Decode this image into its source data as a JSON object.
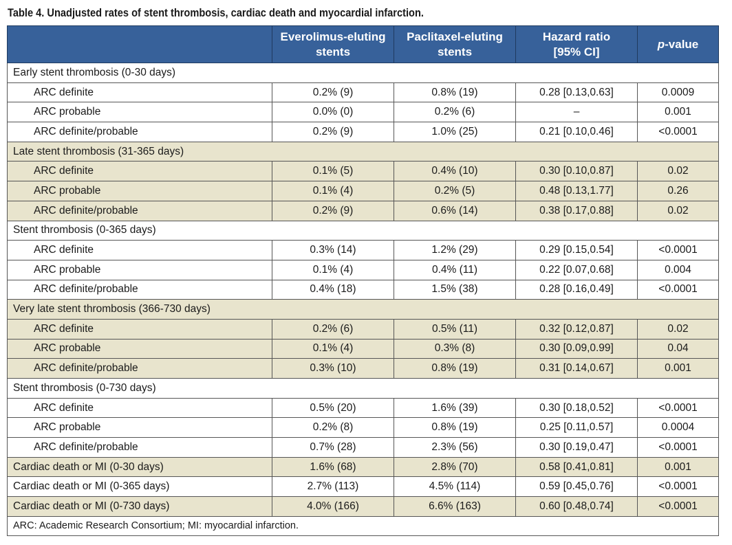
{
  "caption": "Table 4. Unadjusted rates of stent thrombosis, cardiac death and myocardial infarction.",
  "columns": {
    "everolimus": [
      "Everolimus-eluting",
      "stents"
    ],
    "paclitaxel": [
      "Paclitaxel-eluting",
      "stents"
    ],
    "hazard": [
      "Hazard ratio",
      "[95% CI]"
    ],
    "pvalue_italic": "p",
    "pvalue_rest": "-value"
  },
  "colors": {
    "header_bg": "#37619a",
    "band_bg": "#e8e4cd",
    "border": "#555555"
  },
  "rows": [
    {
      "kind": "group",
      "label": "Early stent thrombosis (0-30 days)",
      "band": 0
    },
    {
      "kind": "data",
      "label": "ARC definite",
      "eve": "0.2% (9)",
      "pac": "0.8% (19)",
      "hr": "0.28 [0.13,0.63]",
      "p": "0.0009",
      "band": 0
    },
    {
      "kind": "data",
      "label": "ARC probable",
      "eve": "0.0% (0)",
      "pac": "0.2% (6)",
      "hr": "–",
      "p": "0.001",
      "band": 0
    },
    {
      "kind": "data",
      "label": "ARC definite/probable",
      "eve": "0.2% (9)",
      "pac": "1.0% (25)",
      "hr": "0.21 [0.10,0.46]",
      "p": "<0.0001",
      "band": 0
    },
    {
      "kind": "group",
      "label": "Late stent thrombosis (31-365 days)",
      "band": 1
    },
    {
      "kind": "data",
      "label": "ARC definite",
      "eve": "0.1% (5)",
      "pac": "0.4% (10)",
      "hr": "0.30 [0.10,0.87]",
      "p": "0.02",
      "band": 1
    },
    {
      "kind": "data",
      "label": "ARC probable",
      "eve": "0.1% (4)",
      "pac": "0.2% (5)",
      "hr": "0.48 [0.13,1.77]",
      "p": "0.26",
      "band": 1
    },
    {
      "kind": "data",
      "label": "ARC definite/probable",
      "eve": "0.2% (9)",
      "pac": "0.6% (14)",
      "hr": "0.38 [0.17,0.88]",
      "p": "0.02",
      "band": 1
    },
    {
      "kind": "group",
      "label": "Stent thrombosis (0-365 days)",
      "band": 0
    },
    {
      "kind": "data",
      "label": "ARC definite",
      "eve": "0.3% (14)",
      "pac": "1.2% (29)",
      "hr": "0.29 [0.15,0.54]",
      "p": "<0.0001",
      "band": 0
    },
    {
      "kind": "data",
      "label": "ARC probable",
      "eve": "0.1% (4)",
      "pac": "0.4% (11)",
      "hr": "0.22 [0.07,0.68]",
      "p": "0.004",
      "band": 0
    },
    {
      "kind": "data",
      "label": "ARC definite/probable",
      "eve": "0.4% (18)",
      "pac": "1.5% (38)",
      "hr": "0.28 [0.16,0.49]",
      "p": "<0.0001",
      "band": 0
    },
    {
      "kind": "group",
      "label": "Very late stent thrombosis (366-730 days)",
      "band": 1
    },
    {
      "kind": "data",
      "label": "ARC definite",
      "eve": "0.2% (6)",
      "pac": "0.5% (11)",
      "hr": "0.32 [0.12,0.87]",
      "p": "0.02",
      "band": 1
    },
    {
      "kind": "data",
      "label": "ARC probable",
      "eve": "0.1% (4)",
      "pac": "0.3% (8)",
      "hr": "0.30 [0.09,0.99]",
      "p": "0.04",
      "band": 1
    },
    {
      "kind": "data",
      "label": "ARC definite/probable",
      "eve": "0.3% (10)",
      "pac": "0.8% (19)",
      "hr": "0.31 [0.14,0.67]",
      "p": "0.001",
      "band": 1
    },
    {
      "kind": "group",
      "label": "Stent thrombosis (0-730 days)",
      "band": 0
    },
    {
      "kind": "data",
      "label": "ARC definite",
      "eve": "0.5% (20)",
      "pac": "1.6% (39)",
      "hr": "0.30 [0.18,0.52]",
      "p": "<0.0001",
      "band": 0
    },
    {
      "kind": "data",
      "label": "ARC probable",
      "eve": "0.2% (8)",
      "pac": "0.8% (19)",
      "hr": "0.25 [0.11,0.57]",
      "p": "0.0004",
      "band": 0
    },
    {
      "kind": "data",
      "label": "ARC definite/probable",
      "eve": "0.7% (28)",
      "pac": "2.3% (56)",
      "hr": "0.30 [0.19,0.47]",
      "p": "<0.0001",
      "band": 0
    },
    {
      "kind": "single",
      "label": "Cardiac death or MI (0-30 days)",
      "eve": "1.6% (68)",
      "pac": "2.8% (70)",
      "hr": "0.58 [0.41,0.81]",
      "p": "0.001",
      "band": 1
    },
    {
      "kind": "single",
      "label": "Cardiac death or MI (0-365 days)",
      "eve": "2.7% (113)",
      "pac": "4.5% (114)",
      "hr": "0.59 [0.45,0.76]",
      "p": "<0.0001",
      "band": 0
    },
    {
      "kind": "single",
      "label": "Cardiac death or MI (0-730 days)",
      "eve": "4.0% (166)",
      "pac": "6.6% (163)",
      "hr": "0.60 [0.48,0.74]",
      "p": "<0.0001",
      "band": 1
    }
  ],
  "footnote": "ARC: Academic Research Consortium; MI: myocardial infarction."
}
